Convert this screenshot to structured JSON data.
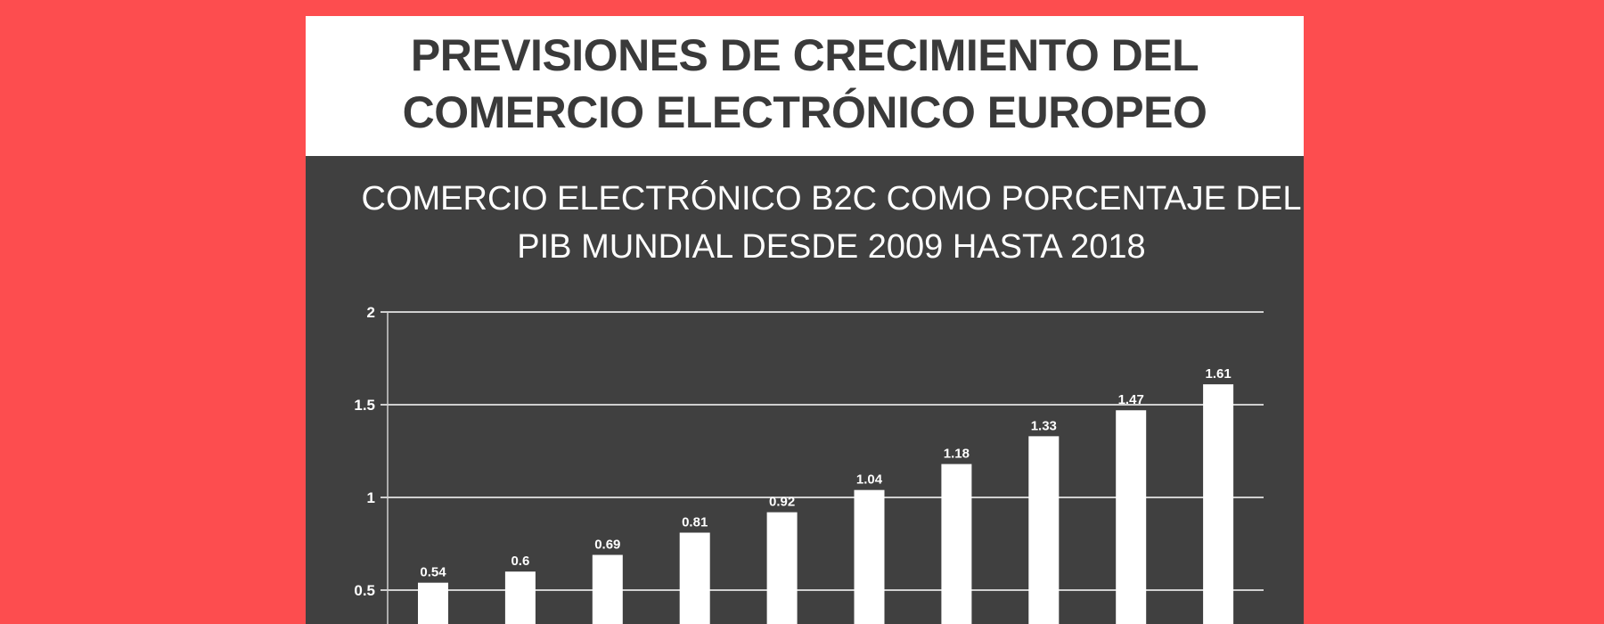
{
  "header": {
    "title_line1": "PREVISIONES DE CRECIMIENTO DEL",
    "title_line2": "COMERCIO ELECTRÓNICO EUROPEO"
  },
  "colors": {
    "background": "#fd4d4f",
    "panel": "#404040",
    "bars": "#ffffff"
  },
  "chart_data": {
    "type": "bar",
    "title_line1": "COMERCIO ELECTRÓNICO B2C COMO PORCENTAJE DEL",
    "title_line2": "PIB MUNDIAL DESDE 2009 HASTA 2018",
    "values": [
      0.54,
      0.6,
      0.69,
      0.81,
      0.92,
      1.04,
      1.18,
      1.33,
      1.47,
      1.61
    ],
    "data_labels": [
      "0.54",
      "0.6",
      "0.69",
      "0.81",
      "0.92",
      "1.04",
      "1.18",
      "1.33",
      "1.47",
      "1.61"
    ],
    "yticks": [
      "0.5",
      "1",
      "1.5",
      "2"
    ],
    "ylim": [
      0,
      2
    ],
    "grid": true
  }
}
